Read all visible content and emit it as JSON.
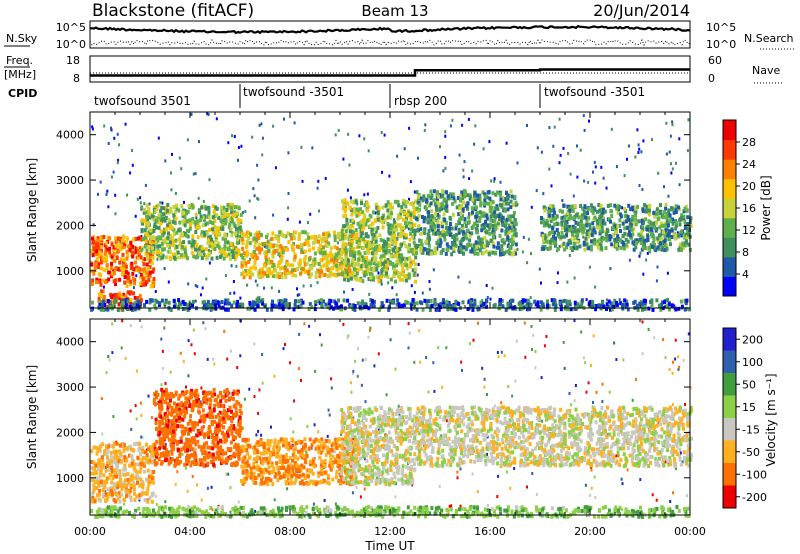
{
  "header": {
    "station": "Blackstone (fitACF)",
    "beam": "Beam 13",
    "date": "20/Jun/2014"
  },
  "nsky_panel": {
    "left_label": "N.Sky",
    "left_ticks": [
      "10^5",
      "10^0"
    ],
    "right_ticks": [
      "10^5",
      "10^0"
    ],
    "right_label": "N.Search"
  },
  "freq_panel": {
    "left_label_1": "Freq.",
    "left_label_2": "[MHz]",
    "left_ticks": [
      "18",
      "8"
    ],
    "right_ticks": [
      "60",
      "0"
    ],
    "right_label": "Nave",
    "freq_steps": [
      [
        0,
        10.5
      ],
      [
        13,
        12.5
      ],
      [
        18,
        12.8
      ],
      [
        24,
        12.8
      ]
    ]
  },
  "cpid": {
    "label": "CPID",
    "segments": [
      {
        "label": "twofsound 3501",
        "start": 0,
        "end": 6
      },
      {
        "label": "twofsound -3501",
        "start": 6,
        "end": 12
      },
      {
        "label": "rbsp 200",
        "start": 12,
        "end": 18
      },
      {
        "label": "twofsound -3501",
        "start": 18,
        "end": 24
      }
    ]
  },
  "colors": {
    "power": [
      "#0000ff",
      "#1f5aa8",
      "#3f8f5f",
      "#5fb04a",
      "#c8d23a",
      "#ffc000",
      "#ff8000",
      "#ff3a00",
      "#ee0000"
    ],
    "velocity": [
      "#ee0000",
      "#ff7000",
      "#ffb020",
      "#c8c8c0",
      "#8cd048",
      "#3f9f3f",
      "#3060b0",
      "#2020d0"
    ]
  },
  "chart_data": [
    {
      "type": "heatmap",
      "title": "",
      "ylabel": "Slant Range [km]",
      "xlim": [
        0,
        24
      ],
      "ylim": [
        180,
        4500
      ],
      "yticks": [
        1000,
        2000,
        3000,
        4000
      ],
      "colorbar": {
        "label": "Power [dB]",
        "ticks": [
          4,
          8,
          12,
          16,
          20,
          24,
          28
        ],
        "range": [
          0,
          32
        ]
      },
      "scatter_regions": [
        {
          "t0": 0.0,
          "t1": 2.5,
          "r0": 700,
          "r1": 1800,
          "power": 24
        },
        {
          "t0": 0.3,
          "t1": 2.0,
          "r0": 180,
          "r1": 600,
          "power": 26
        },
        {
          "t0": 2.0,
          "t1": 6.0,
          "r0": 1300,
          "r1": 2500,
          "power": 14
        },
        {
          "t0": 6.0,
          "t1": 10.5,
          "r0": 900,
          "r1": 1900,
          "power": 18
        },
        {
          "t0": 10.0,
          "t1": 13.0,
          "r0": 800,
          "r1": 2600,
          "power": 14
        },
        {
          "t0": 13.0,
          "t1": 17.0,
          "r0": 1400,
          "r1": 2800,
          "power": 10
        },
        {
          "t0": 18.0,
          "t1": 24.0,
          "r0": 1500,
          "r1": 2500,
          "power": 10
        },
        {
          "t0": 0.0,
          "t1": 24.0,
          "r0": 180,
          "r1": 400,
          "power": 6
        }
      ]
    },
    {
      "type": "heatmap",
      "title": "",
      "xlabel": "Time UT",
      "ylabel": "Slant Range [km]",
      "xlim": [
        0,
        24
      ],
      "xticks": [
        "00:00",
        "04:00",
        "08:00",
        "12:00",
        "16:00",
        "20:00",
        "00:00"
      ],
      "ylim": [
        180,
        4500
      ],
      "yticks": [
        1000,
        2000,
        3000,
        4000
      ],
      "colorbar": {
        "label": "Velocity [m s⁻¹]",
        "ticks": [
          "200",
          "100",
          "50",
          "15",
          "-15",
          "-50",
          "-100",
          "-200"
        ]
      },
      "scatter_regions": [
        {
          "t0": 0.0,
          "t1": 2.5,
          "r0": 500,
          "r1": 1800,
          "velocity": -30
        },
        {
          "t0": 2.5,
          "t1": 6.0,
          "r0": 1300,
          "r1": 3000,
          "velocity": -80
        },
        {
          "t0": 6.0,
          "t1": 10.5,
          "r0": 900,
          "r1": 1900,
          "velocity": -50
        },
        {
          "t0": 10.0,
          "t1": 13.0,
          "r0": 900,
          "r1": 2600,
          "velocity": 0
        },
        {
          "t0": 13.0,
          "t1": 24.0,
          "r0": 1300,
          "r1": 2600,
          "velocity": 0
        },
        {
          "t0": 0.0,
          "t1": 24.0,
          "r0": 180,
          "r1": 400,
          "velocity": 40
        }
      ]
    }
  ]
}
